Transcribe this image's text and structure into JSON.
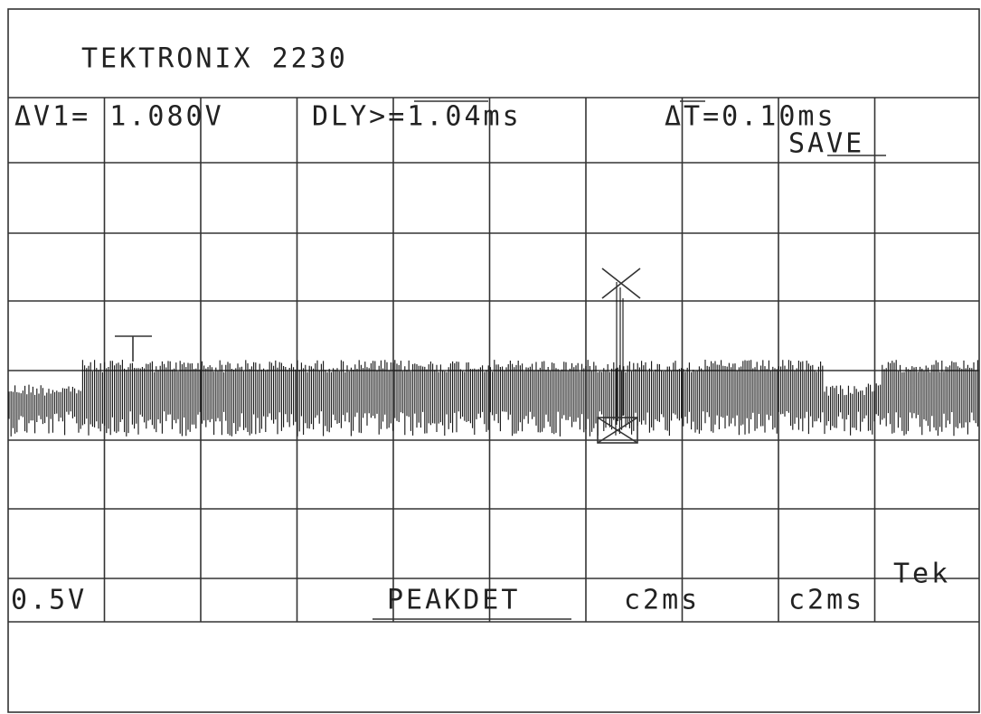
{
  "header": {
    "title": "TEKTRONIX 2230"
  },
  "readouts": {
    "delta_v1": "ΔV1= 1.080V",
    "delay": "DLY>=1.04ms",
    "delta_t": "ΔT=0.10ms",
    "mode": "SAVE"
  },
  "footer": {
    "ch1_scale": "0.5V",
    "acquisition": "PEAKDET",
    "sweep_a": "c2ms",
    "sweep_b": "c2ms",
    "brand": "Tek"
  }
}
